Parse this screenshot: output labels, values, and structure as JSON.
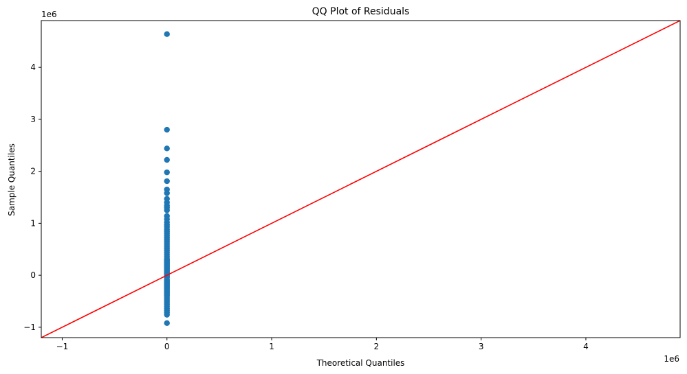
{
  "chart_data": {
    "type": "scatter",
    "title": "QQ Plot of Residuals",
    "xlabel": "Theoretical Quantiles",
    "ylabel": "Sample Quantiles",
    "x_offset_label": "1e6",
    "y_offset_label": "1e6",
    "xlim": [
      -1200000,
      4900000
    ],
    "ylim": [
      -1200000,
      4900000
    ],
    "x_ticks": [
      -1000000,
      0,
      1000000,
      2000000,
      3000000,
      4000000
    ],
    "x_tick_labels": [
      "−1",
      "0",
      "1",
      "2",
      "3",
      "4"
    ],
    "y_ticks": [
      -1000000,
      0,
      1000000,
      2000000,
      3000000,
      4000000
    ],
    "y_tick_labels": [
      "−1",
      "0",
      "1",
      "2",
      "3",
      "4"
    ],
    "grid": false,
    "marker_color": "#1f77b4",
    "line_color": "#ff0000",
    "reference_line": {
      "x": [
        -1200000,
        4900000
      ],
      "y": [
        -1200000,
        4900000
      ]
    },
    "series": [
      {
        "x": [
          0,
          0,
          0,
          0,
          0,
          0,
          0,
          0,
          0,
          0,
          0,
          0,
          0,
          0,
          0,
          0,
          0,
          0,
          0,
          0,
          0,
          0,
          0,
          0,
          0,
          0,
          0,
          0,
          0,
          0,
          0,
          0,
          0,
          0,
          0,
          0,
          0,
          0,
          0,
          0,
          0,
          0,
          0,
          0,
          0,
          0,
          0,
          0,
          0,
          0,
          0,
          0,
          0,
          0,
          0,
          0,
          0,
          0,
          0,
          0,
          0,
          0,
          0,
          0,
          0,
          0,
          0,
          0,
          0,
          0,
          0,
          0,
          0,
          0,
          0,
          0,
          0,
          0
        ],
        "y": [
          4640000,
          2800000,
          2440000,
          2220000,
          1980000,
          1810000,
          1650000,
          1580000,
          1470000,
          1400000,
          1340000,
          1300000,
          1250000,
          1140000,
          1080000,
          1020000,
          970000,
          930000,
          880000,
          840000,
          800000,
          760000,
          720000,
          680000,
          640000,
          600000,
          560000,
          520000,
          480000,
          440000,
          400000,
          360000,
          320000,
          280000,
          240000,
          200000,
          160000,
          120000,
          80000,
          40000,
          0,
          -40000,
          -80000,
          -120000,
          -160000,
          -200000,
          -240000,
          -280000,
          -320000,
          -360000,
          -400000,
          -440000,
          -480000,
          -520000,
          -560000,
          -600000,
          -640000,
          -680000,
          -720000,
          -760000,
          -920000,
          -20000,
          20000,
          60000,
          100000,
          140000,
          180000,
          220000,
          260000,
          300000,
          -100000,
          -140000,
          -180000,
          -220000,
          -260000,
          -300000,
          -340000,
          -380000
        ]
      }
    ]
  }
}
